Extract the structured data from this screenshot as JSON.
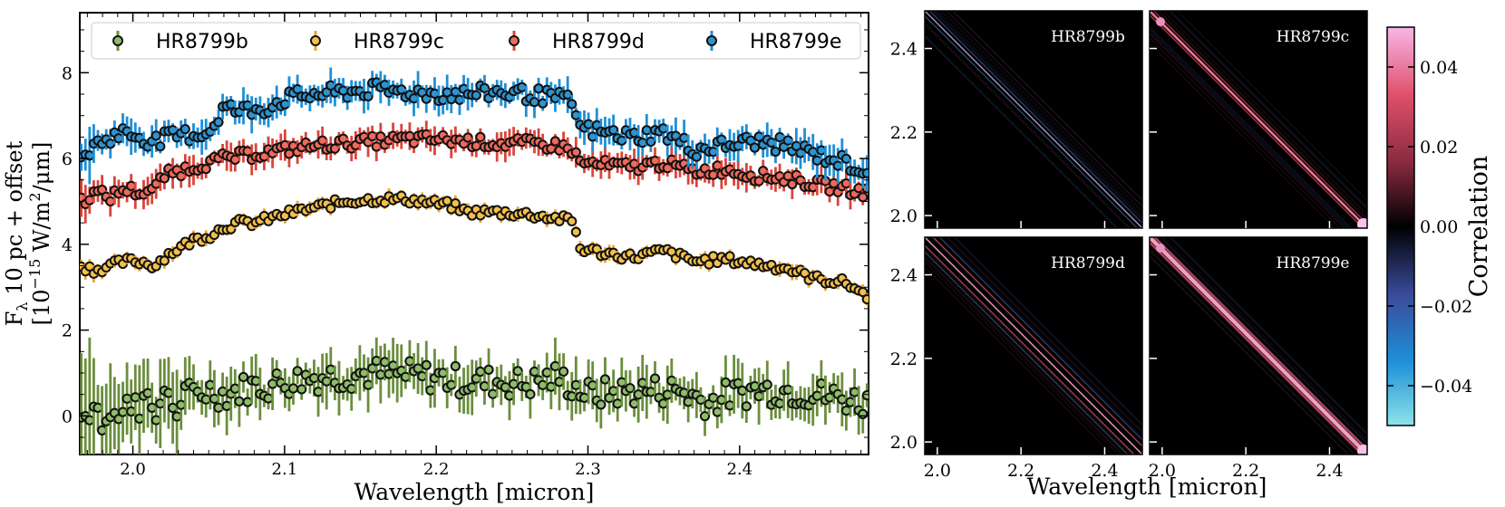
{
  "chart_data": [
    {
      "type": "scatter",
      "title": "",
      "xlabel": "Wavelength [micron]",
      "ylabel_line1": "F",
      "ylabel_sub": "λ",
      "ylabel_line1_rest": " 10 pc + offset",
      "ylabel_line2_pre": "[10",
      "ylabel_line2_sup": "−15",
      "ylabel_line2_mid": " W/m",
      "ylabel_line2_sup2": "2",
      "ylabel_line2_post": "/μm]",
      "xlim": [
        1.965,
        2.485
      ],
      "ylim": [
        -0.9,
        9.4
      ],
      "xticks": [
        "2.0",
        "2.1",
        "2.2",
        "2.3",
        "2.4"
      ],
      "xtick_values": [
        2.0,
        2.1,
        2.2,
        2.3,
        2.4
      ],
      "yticks": [
        "0",
        "2",
        "4",
        "6",
        "8"
      ],
      "ytick_values": [
        0,
        2,
        4,
        6,
        8
      ],
      "grid": false,
      "legend_position": "top",
      "series": [
        {
          "name": "HR8799b",
          "color": "#6b8e3d",
          "fill": "#8fbc6a",
          "anchors": [
            [
              1.966,
              0.2
            ],
            [
              1.975,
              0.1
            ],
            [
              1.985,
              0.0
            ],
            [
              1.995,
              0.2
            ],
            [
              2.0,
              0.3
            ],
            [
              2.005,
              0.4
            ],
            [
              2.01,
              0.3
            ],
            [
              2.015,
              0.2
            ],
            [
              2.02,
              0.3
            ],
            [
              2.03,
              0.4
            ],
            [
              2.04,
              0.5
            ],
            [
              2.05,
              0.6
            ],
            [
              2.06,
              0.5
            ],
            [
              2.07,
              0.6
            ],
            [
              2.08,
              0.7
            ],
            [
              2.09,
              0.7
            ],
            [
              2.1,
              0.8
            ],
            [
              2.12,
              0.9
            ],
            [
              2.14,
              0.95
            ],
            [
              2.16,
              1.0
            ],
            [
              2.18,
              0.95
            ],
            [
              2.2,
              0.9
            ],
            [
              2.22,
              0.8
            ],
            [
              2.24,
              0.8
            ],
            [
              2.26,
              0.75
            ],
            [
              2.28,
              0.9
            ],
            [
              2.29,
              0.7
            ],
            [
              2.3,
              0.5
            ],
            [
              2.32,
              0.55
            ],
            [
              2.34,
              0.6
            ],
            [
              2.36,
              0.6
            ],
            [
              2.38,
              0.3
            ],
            [
              2.39,
              0.45
            ],
            [
              2.41,
              0.6
            ],
            [
              2.43,
              0.6
            ],
            [
              2.45,
              0.5
            ],
            [
              2.47,
              0.4
            ],
            [
              2.484,
              0.3
            ]
          ],
          "scatter": 0.35,
          "err": 0.55
        },
        {
          "name": "HR8799c",
          "color": "#e8a531",
          "fill": "#f5c04a",
          "anchors": [
            [
              1.966,
              3.5
            ],
            [
              1.975,
              3.4
            ],
            [
              1.985,
              3.5
            ],
            [
              1.995,
              3.6
            ],
            [
              2.005,
              3.6
            ],
            [
              2.015,
              3.5
            ],
            [
              2.02,
              3.7
            ],
            [
              2.03,
              3.9
            ],
            [
              2.04,
              4.1
            ],
            [
              2.05,
              4.2
            ],
            [
              2.06,
              4.4
            ],
            [
              2.07,
              4.5
            ],
            [
              2.08,
              4.5
            ],
            [
              2.09,
              4.6
            ],
            [
              2.1,
              4.7
            ],
            [
              2.12,
              4.85
            ],
            [
              2.14,
              5.0
            ],
            [
              2.16,
              5.05
            ],
            [
              2.18,
              5.05
            ],
            [
              2.2,
              4.95
            ],
            [
              2.21,
              4.9
            ],
            [
              2.22,
              4.75
            ],
            [
              2.24,
              4.75
            ],
            [
              2.26,
              4.7
            ],
            [
              2.28,
              4.6
            ],
            [
              2.29,
              4.55
            ],
            [
              2.295,
              3.9
            ],
            [
              2.31,
              3.8
            ],
            [
              2.33,
              3.7
            ],
            [
              2.35,
              3.85
            ],
            [
              2.37,
              3.6
            ],
            [
              2.39,
              3.65
            ],
            [
              2.41,
              3.55
            ],
            [
              2.43,
              3.45
            ],
            [
              2.45,
              3.2
            ],
            [
              2.47,
              3.1
            ],
            [
              2.484,
              2.8
            ]
          ],
          "scatter": 0.1,
          "err": 0.15
        },
        {
          "name": "HR8799d",
          "color": "#d9453a",
          "fill": "#ee6b5c",
          "anchors": [
            [
              1.966,
              5.0
            ],
            [
              1.975,
              5.2
            ],
            [
              1.985,
              5.1
            ],
            [
              1.995,
              5.3
            ],
            [
              2.005,
              5.2
            ],
            [
              2.015,
              5.3
            ],
            [
              2.02,
              5.6
            ],
            [
              2.03,
              5.7
            ],
            [
              2.04,
              5.8
            ],
            [
              2.05,
              5.9
            ],
            [
              2.06,
              6.0
            ],
            [
              2.07,
              6.05
            ],
            [
              2.08,
              6.1
            ],
            [
              2.09,
              6.15
            ],
            [
              2.1,
              6.2
            ],
            [
              2.12,
              6.3
            ],
            [
              2.14,
              6.35
            ],
            [
              2.16,
              6.4
            ],
            [
              2.18,
              6.45
            ],
            [
              2.2,
              6.45
            ],
            [
              2.22,
              6.4
            ],
            [
              2.24,
              6.35
            ],
            [
              2.26,
              6.35
            ],
            [
              2.28,
              6.3
            ],
            [
              2.29,
              6.2
            ],
            [
              2.295,
              5.9
            ],
            [
              2.31,
              5.85
            ],
            [
              2.33,
              5.8
            ],
            [
              2.35,
              5.9
            ],
            [
              2.37,
              5.7
            ],
            [
              2.39,
              5.75
            ],
            [
              2.41,
              5.6
            ],
            [
              2.43,
              5.55
            ],
            [
              2.45,
              5.4
            ],
            [
              2.47,
              5.3
            ],
            [
              2.484,
              5.2
            ]
          ],
          "scatter": 0.13,
          "err": 0.3
        },
        {
          "name": "HR8799e",
          "color": "#1f8fd6",
          "fill": "#2f93cf",
          "anchors": [
            [
              1.966,
              6.0
            ],
            [
              1.975,
              6.3
            ],
            [
              1.985,
              6.5
            ],
            [
              1.995,
              6.6
            ],
            [
              2.005,
              6.5
            ],
            [
              2.015,
              6.4
            ],
            [
              2.025,
              6.5
            ],
            [
              2.035,
              6.55
            ],
            [
              2.05,
              6.6
            ],
            [
              2.06,
              7.2
            ],
            [
              2.07,
              7.1
            ],
            [
              2.08,
              7.15
            ],
            [
              2.09,
              7.2
            ],
            [
              2.1,
              7.4
            ],
            [
              2.12,
              7.5
            ],
            [
              2.14,
              7.55
            ],
            [
              2.16,
              7.6
            ],
            [
              2.18,
              7.55
            ],
            [
              2.2,
              7.5
            ],
            [
              2.22,
              7.5
            ],
            [
              2.24,
              7.55
            ],
            [
              2.26,
              7.5
            ],
            [
              2.28,
              7.4
            ],
            [
              2.29,
              7.3
            ],
            [
              2.295,
              6.7
            ],
            [
              2.31,
              6.6
            ],
            [
              2.33,
              6.5
            ],
            [
              2.35,
              6.6
            ],
            [
              2.37,
              6.2
            ],
            [
              2.39,
              6.3
            ],
            [
              2.41,
              6.4
            ],
            [
              2.43,
              6.3
            ],
            [
              2.45,
              6.1
            ],
            [
              2.47,
              5.9
            ],
            [
              2.484,
              5.7
            ]
          ],
          "scatter": 0.18,
          "err": 0.35
        }
      ]
    },
    {
      "type": "heatmap",
      "xlabel": "Wavelength [micron]",
      "xticks": [
        "2.0",
        "2.2",
        "2.4"
      ],
      "yticks": [
        "2.0",
        "2.2",
        "2.4"
      ],
      "tick_values": [
        2.0,
        2.2,
        2.4
      ],
      "range": [
        1.97,
        2.49
      ],
      "panels": [
        {
          "name": "HR8799b",
          "offsets": [
            0
          ],
          "bands": [
            {
              "d": 0,
              "color": "#c9a0d8",
              "w": 1.2
            },
            {
              "d": 0.012,
              "color": "#3a6fb0",
              "w": 0.8
            },
            {
              "d": -0.012,
              "color": "#3a6fb0",
              "w": 0.8
            }
          ],
          "corner_blob": false
        },
        {
          "name": "HR8799c",
          "bands": [
            {
              "d": 0,
              "color": "#e5748a",
              "w": 2.6
            },
            {
              "d": 0.01,
              "color": "#b03850",
              "w": 1.2
            },
            {
              "d": -0.01,
              "color": "#b03850",
              "w": 1.2
            }
          ],
          "corner_blob": true
        },
        {
          "name": "HR8799d",
          "bands": [
            {
              "d": 0,
              "color": "#e8a0c0",
              "w": 1.4
            },
            {
              "d": 0.02,
              "color": "#c84858",
              "w": 1.1
            },
            {
              "d": -0.02,
              "color": "#c84858",
              "w": 1.1
            },
            {
              "d": 0.035,
              "color": "#4a6ab0",
              "w": 0.7
            },
            {
              "d": -0.035,
              "color": "#4a6ab0",
              "w": 0.7
            }
          ],
          "corner_blob": false
        },
        {
          "name": "HR8799e",
          "bands": [
            {
              "d": 0,
              "color": "#f0a0c0",
              "w": 4.5
            },
            {
              "d": 0.012,
              "color": "#c04860",
              "w": 2.0
            },
            {
              "d": -0.012,
              "color": "#c04860",
              "w": 2.0
            }
          ],
          "corner_blob": true
        }
      ]
    },
    {
      "type": "colorbar",
      "label": "Correlation",
      "range": [
        -0.05,
        0.05
      ],
      "ticks": [
        "0.04",
        "0.02",
        "0.00",
        "−0.02",
        "−0.04"
      ],
      "tick_values": [
        0.04,
        0.02,
        0.0,
        -0.02,
        -0.04
      ],
      "colors": [
        "#8de3ea",
        "#1e90d8",
        "#3a4a9a",
        "#000000",
        "#8a2a40",
        "#e0506a",
        "#f7b6e8"
      ]
    }
  ]
}
